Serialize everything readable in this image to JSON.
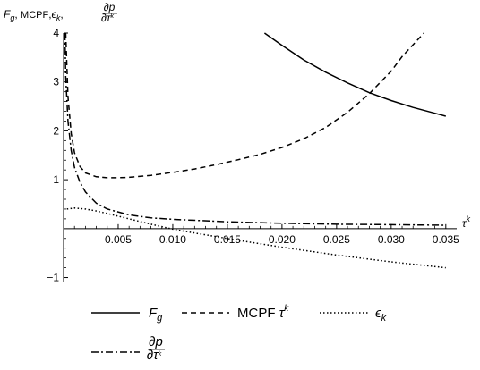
{
  "chart_data": {
    "type": "line",
    "title": "",
    "ylabel_parts": {
      "f": "F",
      "f_sub": "g",
      "sep1": ", ",
      "mcpf": "MCPF",
      "sep2": ",",
      "eps": "ϵ",
      "eps_sub": "k",
      "sep3": ",",
      "frac_num": "∂p",
      "frac_den_base": "∂τ",
      "frac_den_sup": "k"
    },
    "xlabel_base": "τ",
    "xlabel_sup": "k",
    "xlim": [
      0,
      0.036
    ],
    "ylim": [
      -1.1,
      4.0
    ],
    "x_ticks": [
      {
        "value": 0.005,
        "label": "0.005"
      },
      {
        "value": 0.01,
        "label": "0.010"
      },
      {
        "value": 0.015,
        "label": "0.015"
      },
      {
        "value": 0.02,
        "label": "0.020"
      },
      {
        "value": 0.025,
        "label": "0.025"
      },
      {
        "value": 0.03,
        "label": "0.030"
      },
      {
        "value": 0.035,
        "label": "0.035"
      }
    ],
    "y_ticks": [
      {
        "value": -1,
        "label": "−1"
      },
      {
        "value": 1,
        "label": "1"
      },
      {
        "value": 2,
        "label": "2"
      },
      {
        "value": 3,
        "label": "3"
      },
      {
        "value": 4,
        "label": "4"
      }
    ],
    "grid": false,
    "legend_position": "bottom",
    "series": [
      {
        "key": "fg",
        "dash": "solid",
        "x": [
          0.0184,
          0.02,
          0.022,
          0.024,
          0.026,
          0.028,
          0.03,
          0.032,
          0.034,
          0.035
        ],
        "y": [
          4.0,
          3.75,
          3.45,
          3.2,
          2.98,
          2.78,
          2.62,
          2.48,
          2.36,
          2.3
        ]
      },
      {
        "key": "mcpf",
        "dash": "dashed",
        "x": [
          0.0002,
          0.0004,
          0.0007,
          0.001,
          0.0015,
          0.002,
          0.003,
          0.004,
          0.005,
          0.006,
          0.008,
          0.01,
          0.012,
          0.014,
          0.016,
          0.018,
          0.02,
          0.022,
          0.024,
          0.026,
          0.028,
          0.03,
          0.031,
          0.032,
          0.033
        ],
        "y": [
          4.0,
          2.7,
          1.95,
          1.55,
          1.27,
          1.14,
          1.06,
          1.04,
          1.04,
          1.05,
          1.09,
          1.15,
          1.22,
          1.31,
          1.41,
          1.52,
          1.66,
          1.84,
          2.07,
          2.38,
          2.76,
          3.22,
          3.52,
          3.76,
          4.0
        ]
      },
      {
        "key": "eps",
        "dash": "dotted",
        "x": [
          0.0003,
          0.001,
          0.002,
          0.003,
          0.004,
          0.006,
          0.008,
          0.01,
          0.012,
          0.015,
          0.018,
          0.02,
          0.025,
          0.03,
          0.035
        ],
        "y": [
          0.4,
          0.42,
          0.4,
          0.36,
          0.31,
          0.2,
          0.09,
          -0.01,
          -0.09,
          -0.2,
          -0.31,
          -0.38,
          -0.54,
          -0.68,
          -0.8
        ]
      },
      {
        "key": "dp",
        "dash": "dashdot",
        "x": [
          0.00012,
          0.0002,
          0.0004,
          0.0007,
          0.001,
          0.0015,
          0.002,
          0.003,
          0.004,
          0.006,
          0.008,
          0.01,
          0.015,
          0.02,
          0.025,
          0.03,
          0.035
        ],
        "y": [
          4.0,
          3.1,
          2.2,
          1.6,
          1.25,
          0.95,
          0.75,
          0.52,
          0.4,
          0.28,
          0.22,
          0.19,
          0.14,
          0.11,
          0.09,
          0.08,
          0.07
        ]
      }
    ],
    "legend": [
      {
        "key": "fg",
        "dash": "solid",
        "label_base": "F",
        "label_sub": "g"
      },
      {
        "key": "mcpf",
        "dash": "dashed",
        "label_text": "MCPF",
        "label_tau": " τ",
        "label_sup": "k"
      },
      {
        "key": "eps",
        "dash": "dotted",
        "label_base": "ϵ",
        "label_sub": "k"
      },
      {
        "key": "dp",
        "dash": "dashdot",
        "frac_num": "∂p",
        "frac_den_base": "∂τ",
        "frac_den_sup": "k"
      }
    ],
    "line_color": "#000000"
  }
}
